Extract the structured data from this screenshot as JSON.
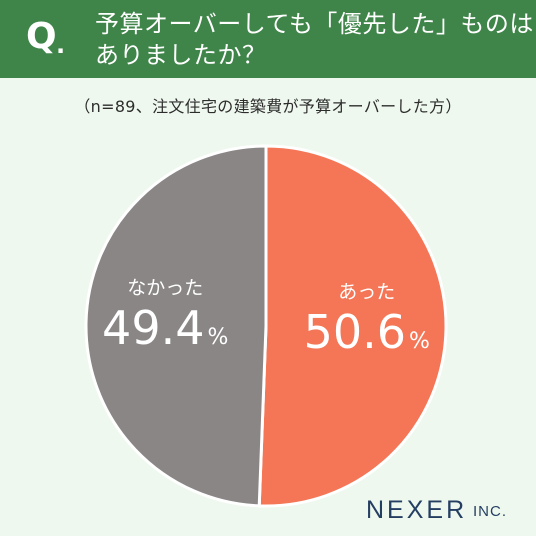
{
  "header": {
    "q_mark": "Q",
    "q_dot": ".",
    "question_line1": "予算オーバーしても「優先した」ものは",
    "question_line2": "ありましたか？"
  },
  "sample_note": "（n=89、注文住宅の建築費が予算オーバーした方）",
  "chart_data": {
    "type": "pie",
    "start_angle_deg": 0,
    "direction": "clockwise",
    "slices": [
      {
        "label": "あった",
        "value": 50.6,
        "value_text": "50.6",
        "unit": "%",
        "color": "#f47656"
      },
      {
        "label": "なかった",
        "value": 49.4,
        "value_text": "49.4",
        "unit": "%",
        "color": "#8a8686"
      }
    ]
  },
  "logo": {
    "name": "NEXER",
    "suffix": "INC."
  },
  "colors": {
    "header_bg": "#3f8449",
    "page_bg": "#eef8ee",
    "label_text": "#ffffff",
    "logo_text": "#253f63"
  }
}
